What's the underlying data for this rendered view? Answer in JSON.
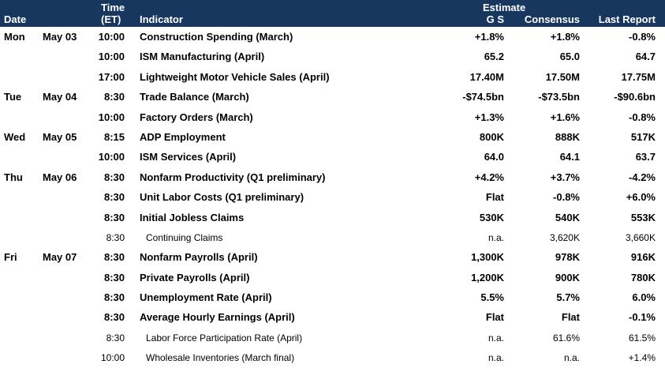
{
  "header": {
    "date": "Date",
    "time_line1": "Time",
    "time_line2": "(ET)",
    "indicator": "Indicator",
    "estimate": "Estimate",
    "gs": "G S",
    "consensus": "Consensus",
    "last_report": "Last Report"
  },
  "rows": [
    {
      "day": "Mon",
      "date": "May 03",
      "time": "10:00",
      "indicator": "Construction Spending (March)",
      "gs": "+1.8%",
      "consensus": "+1.8%",
      "last": "-0.8%"
    },
    {
      "day": "",
      "date": "",
      "time": "10:00",
      "indicator": "ISM Manufacturing (April)",
      "gs": "65.2",
      "consensus": "65.0",
      "last": "64.7"
    },
    {
      "day": "",
      "date": "",
      "time": "17:00",
      "indicator": "Lightweight Motor Vehicle Sales (April)",
      "gs": "17.40M",
      "consensus": "17.50M",
      "last": "17.75M"
    },
    {
      "day": "Tue",
      "date": "May 04",
      "time": "8:30",
      "indicator": "Trade Balance (March)",
      "gs": "-$74.5bn",
      "consensus": "-$73.5bn",
      "last": "-$90.6bn"
    },
    {
      "day": "",
      "date": "",
      "time": "10:00",
      "indicator": "Factory Orders (March)",
      "gs": "+1.3%",
      "consensus": "+1.6%",
      "last": "-0.8%"
    },
    {
      "day": "Wed",
      "date": "May 05",
      "time": "8:15",
      "indicator": "ADP Employment",
      "gs": "800K",
      "consensus": "888K",
      "last": "517K"
    },
    {
      "day": "",
      "date": "",
      "time": "10:00",
      "indicator": "ISM Services (April)",
      "gs": "64.0",
      "consensus": "64.1",
      "last": "63.7"
    },
    {
      "day": "Thu",
      "date": "May 06",
      "time": "8:30",
      "indicator": "Nonfarm Productivity (Q1 preliminary)",
      "gs": "+4.2%",
      "consensus": "+3.7%",
      "last": "-4.2%"
    },
    {
      "day": "",
      "date": "",
      "time": "8:30",
      "indicator": "Unit Labor Costs (Q1 preliminary)",
      "gs": "Flat",
      "consensus": "-0.8%",
      "last": "+6.0%"
    },
    {
      "day": "",
      "date": "",
      "time": "8:30",
      "indicator": "Initial Jobless Claims",
      "gs": "530K",
      "consensus": "540K",
      "last": "553K"
    },
    {
      "day": "",
      "date": "",
      "time": "8:30",
      "indicator": "Continuing Claims",
      "gs": "n.a.",
      "consensus": "3,620K",
      "last": "3,660K"
    },
    {
      "day": "Fri",
      "date": "May 07",
      "time": "8:30",
      "indicator": "Nonfarm Payrolls (April)",
      "gs": "1,300K",
      "consensus": "978K",
      "last": "916K"
    },
    {
      "day": "",
      "date": "",
      "time": "8:30",
      "indicator": "Private Payrolls (April)",
      "gs": "1,200K",
      "consensus": "900K",
      "last": "780K"
    },
    {
      "day": "",
      "date": "",
      "time": "8:30",
      "indicator": "Unemployment Rate (April)",
      "gs": "5.5%",
      "consensus": "5.7%",
      "last": "6.0%"
    },
    {
      "day": "",
      "date": "",
      "time": "8:30",
      "indicator": "Average Hourly Earnings (April)",
      "gs": "Flat",
      "consensus": "Flat",
      "last": "-0.1%"
    },
    {
      "day": "",
      "date": "",
      "time": "8:30",
      "indicator": "Labor Force Participation Rate (April)",
      "gs": "n.a.",
      "consensus": "61.6%",
      "last": "61.5%"
    },
    {
      "day": "",
      "date": "",
      "time": "10:00",
      "indicator": "Wholesale Inventories (March final)",
      "gs": "n.a.",
      "consensus": "n.a.",
      "last": "+1.4%"
    }
  ],
  "styles": [
    "b",
    "b",
    "b",
    "b",
    "b",
    "b",
    "b",
    "b",
    "b",
    "b",
    "n",
    "b",
    "b",
    "b",
    "b",
    "n",
    "n"
  ]
}
